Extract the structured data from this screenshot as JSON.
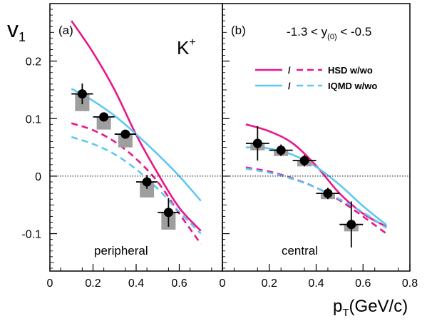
{
  "chart_data": {
    "type": "scatter",
    "ylabel": "v",
    "ylabel_sub": "1",
    "xlabel_main": "p",
    "xlabel_sub": "T",
    "xlabel_unit": "(GeV/c)",
    "ylim": [
      -0.165,
      0.3
    ],
    "yticks": [
      -0.1,
      0,
      0.1,
      0.2
    ],
    "ytick_labels": [
      "-0.1",
      "0",
      "0.1",
      "0.2"
    ],
    "grid": false,
    "particle_label": "K",
    "particle_charge": "+",
    "rapidity_label": {
      "pre": "-1.3 < y",
      "sub": "(0)",
      "post": " < -0.5"
    },
    "legend": {
      "placement": "top-right of panel (b)",
      "separator": "/",
      "entries": [
        {
          "text": "HSD w/wo",
          "color": "#e8178a"
        },
        {
          "text": "IQMD w/wo",
          "color": "#5ec8f2"
        }
      ]
    },
    "colors": {
      "hsd": "#e8178a",
      "iqmd": "#5ec8f2",
      "data": "#000000",
      "syst": "#9e9e9e"
    },
    "panels": [
      {
        "tag": "(a)",
        "centrality": "peripheral",
        "xlim": [
          0,
          0.8
        ],
        "xticks": [
          0,
          0.2,
          0.4,
          0.6
        ],
        "xtick_labels": [
          "0",
          "0.2",
          "0.4",
          "0.6"
        ],
        "data": [
          {
            "x": 0.15,
            "y": 0.143,
            "xerr": 0.05,
            "yerr": 0.018,
            "syst": 0.03
          },
          {
            "x": 0.25,
            "y": 0.103,
            "xerr": 0.05,
            "yerr": 0.008,
            "syst": 0.022
          },
          {
            "x": 0.35,
            "y": 0.073,
            "xerr": 0.05,
            "yerr": 0.007,
            "syst": 0.023
          },
          {
            "x": 0.45,
            "y": -0.01,
            "xerr": 0.05,
            "yerr": 0.012,
            "syst": 0.027
          },
          {
            "x": 0.55,
            "y": -0.063,
            "xerr": 0.05,
            "yerr": 0.025,
            "syst": 0.03
          }
        ],
        "curves": [
          {
            "model": "hsd",
            "style": "solid",
            "x": [
              0.1,
              0.2,
              0.3,
              0.4,
              0.5,
              0.6,
              0.7
            ],
            "y": [
              0.27,
              0.215,
              0.15,
              0.072,
              0.005,
              -0.055,
              -0.095
            ]
          },
          {
            "model": "hsd",
            "style": "dashed",
            "x": [
              0.1,
              0.2,
              0.3,
              0.4,
              0.5,
              0.6,
              0.7
            ],
            "y": [
              0.092,
              0.08,
              0.06,
              0.03,
              -0.01,
              -0.065,
              -0.118
            ]
          },
          {
            "model": "iqmd",
            "style": "solid",
            "x": [
              0.1,
              0.2,
              0.3,
              0.4,
              0.5,
              0.6,
              0.7
            ],
            "y": [
              0.152,
              0.131,
              0.105,
              0.073,
              0.038,
              0.0,
              -0.043
            ]
          },
          {
            "model": "iqmd",
            "style": "dashed",
            "x": [
              0.1,
              0.2,
              0.3,
              0.4,
              0.5,
              0.6,
              0.7
            ],
            "y": [
              0.068,
              0.056,
              0.038,
              0.012,
              -0.022,
              -0.062,
              -0.1
            ]
          }
        ]
      },
      {
        "tag": "(b)",
        "centrality": "central",
        "xlim": [
          0,
          0.8
        ],
        "xticks": [
          0,
          0.2,
          0.4,
          0.6,
          0.8
        ],
        "xtick_labels": [
          "0",
          "0.2",
          "0.4",
          "0.6",
          "0.8"
        ],
        "data": [
          {
            "x": 0.15,
            "y": 0.057,
            "xerr": 0.05,
            "yerr": 0.03,
            "syst": 0.012
          },
          {
            "x": 0.25,
            "y": 0.045,
            "xerr": 0.05,
            "yerr": 0.01,
            "syst": 0.01
          },
          {
            "x": 0.35,
            "y": 0.027,
            "xerr": 0.05,
            "yerr": 0.01,
            "syst": 0.01
          },
          {
            "x": 0.45,
            "y": -0.03,
            "xerr": 0.05,
            "yerr": 0.01,
            "syst": 0.01
          },
          {
            "x": 0.55,
            "y": -0.084,
            "xerr": 0.05,
            "yerr": 0.04,
            "syst": 0.012
          }
        ],
        "curves": [
          {
            "model": "hsd",
            "style": "solid",
            "x": [
              0.1,
              0.2,
              0.3,
              0.4,
              0.5,
              0.6,
              0.7
            ],
            "y": [
              0.09,
              0.078,
              0.057,
              0.018,
              -0.03,
              -0.065,
              -0.088
            ]
          },
          {
            "model": "hsd",
            "style": "dashed",
            "x": [
              0.1,
              0.2,
              0.3,
              0.4,
              0.5,
              0.6,
              0.7
            ],
            "y": [
              0.015,
              0.008,
              -0.004,
              -0.02,
              -0.042,
              -0.07,
              -0.1
            ]
          },
          {
            "model": "iqmd",
            "style": "solid",
            "x": [
              0.1,
              0.2,
              0.3,
              0.4,
              0.5,
              0.6,
              0.7
            ],
            "y": [
              0.05,
              0.048,
              0.037,
              0.016,
              -0.015,
              -0.052,
              -0.085
            ]
          },
          {
            "model": "iqmd",
            "style": "dashed",
            "x": [
              0.1,
              0.2,
              0.3,
              0.4,
              0.5,
              0.6,
              0.7
            ],
            "y": [
              0.013,
              0.006,
              -0.005,
              -0.02,
              -0.04,
              -0.063,
              -0.09
            ]
          }
        ]
      }
    ]
  }
}
